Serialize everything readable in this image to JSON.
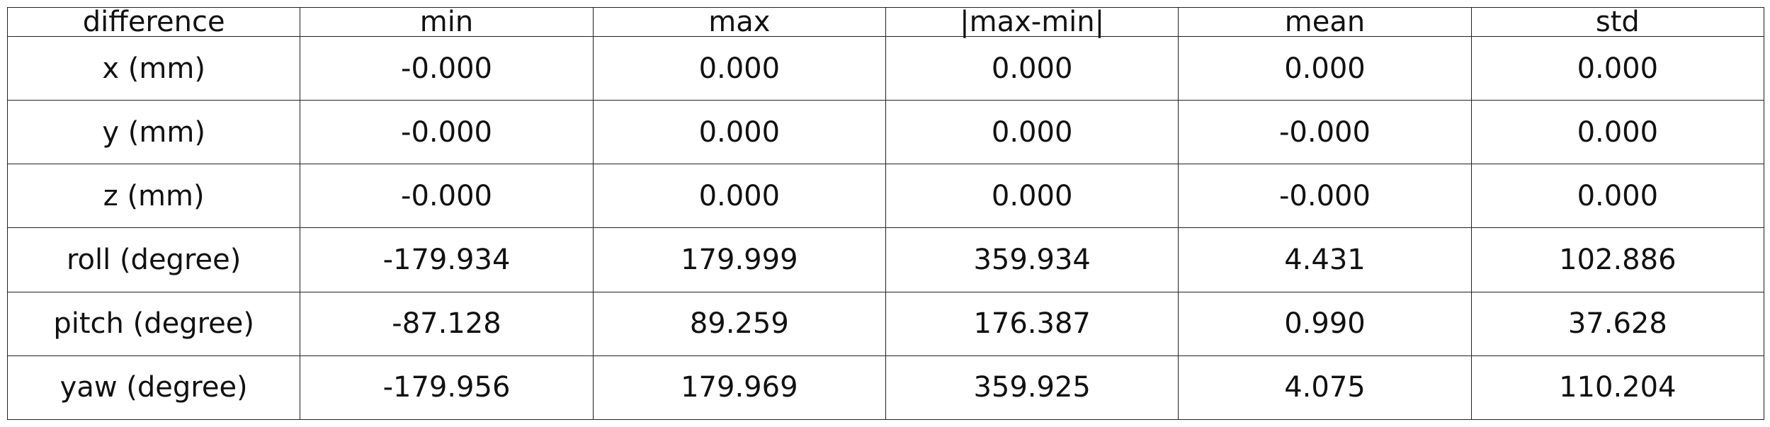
{
  "chart_data": {
    "type": "table",
    "columns": [
      "difference",
      "min",
      "max",
      "|max-min|",
      "mean",
      "std"
    ],
    "rows": [
      [
        "x (mm)",
        "-0.000",
        "0.000",
        "0.000",
        "0.000",
        "0.000"
      ],
      [
        "y (mm)",
        "-0.000",
        "0.000",
        "0.000",
        "-0.000",
        "0.000"
      ],
      [
        "z (mm)",
        "-0.000",
        "0.000",
        "0.000",
        "-0.000",
        "0.000"
      ],
      [
        "roll (degree)",
        "-179.934",
        "179.999",
        "359.934",
        "4.431",
        "102.886"
      ],
      [
        "pitch (degree)",
        "-87.128",
        "89.259",
        "176.387",
        "0.990",
        "37.628"
      ],
      [
        "yaw (degree)",
        "-179.956",
        "179.969",
        "359.925",
        "4.075",
        "110.204"
      ]
    ]
  }
}
